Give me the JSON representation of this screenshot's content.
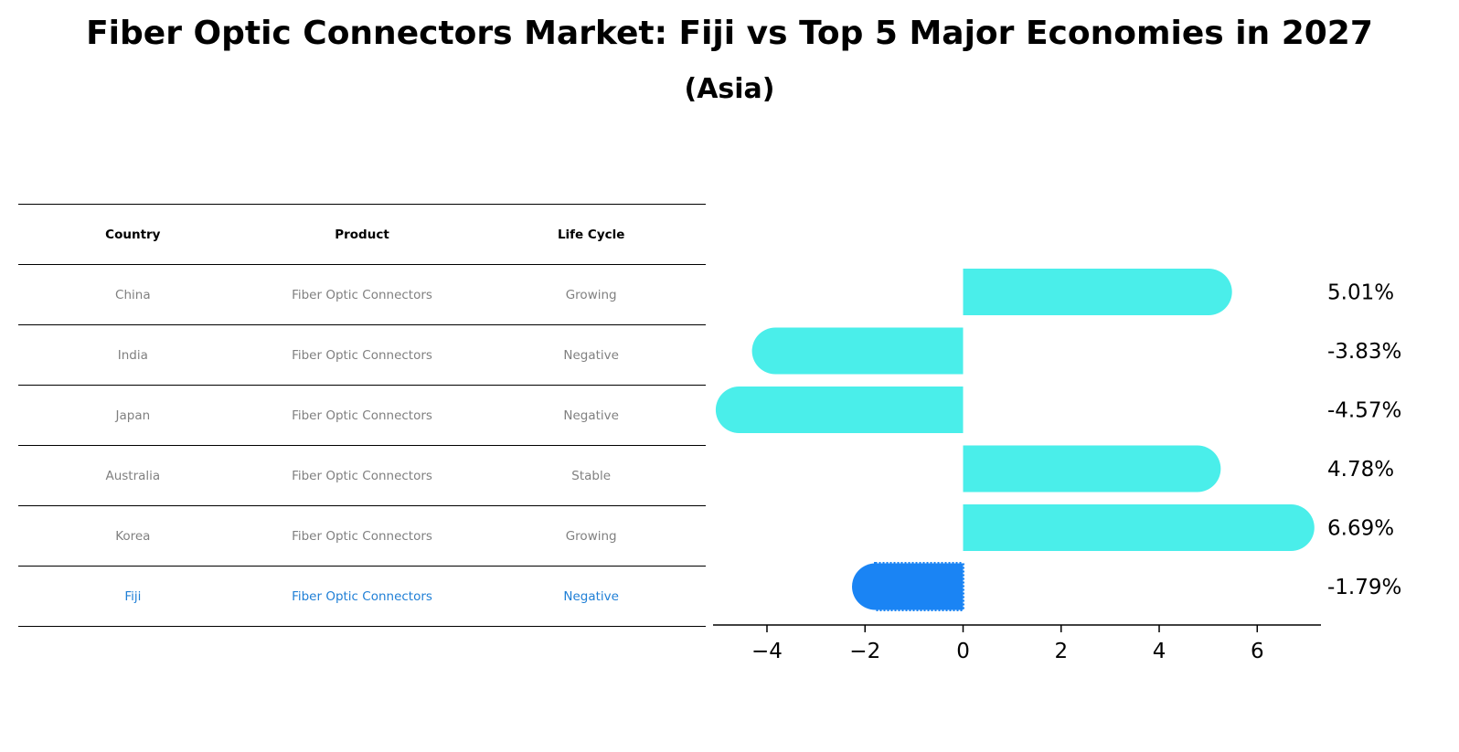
{
  "title": "Fiber Optic Connectors Market: Fiji vs Top 5 Major Economies in 2027",
  "subtitle": "(Asia)",
  "table": {
    "headers": [
      "Country",
      "Product",
      "Life Cycle"
    ],
    "rows": [
      [
        "China",
        "Fiber Optic Connectors",
        "Growing"
      ],
      [
        "India",
        "Fiber Optic Connectors",
        "Negative"
      ],
      [
        "Japan",
        "Fiber Optic Connectors",
        "Negative"
      ],
      [
        "Australia",
        "Fiber Optic Connectors",
        "Stable"
      ],
      [
        "Korea",
        "Fiber Optic Connectors",
        "Growing"
      ],
      [
        "Fiji",
        "Fiber Optic Connectors",
        "Negative"
      ]
    ],
    "highlight_row": 5
  },
  "colors": {
    "bar": "#4aeeea",
    "highlight": "#1a84f4",
    "highlight_text": "#1f7fd6",
    "text_muted": "#808080"
  },
  "chart_data": {
    "type": "bar",
    "orientation": "horizontal",
    "categories": [
      "China",
      "India",
      "Japan",
      "Australia",
      "Korea",
      "Fiji"
    ],
    "values": [
      5.01,
      -3.83,
      -4.57,
      4.78,
      6.69,
      -1.79
    ],
    "value_labels": [
      "5.01%",
      "-3.83%",
      "-4.57%",
      "4.78%",
      "6.69%",
      "-1.79%"
    ],
    "xlim": [
      -5.1,
      7.3
    ],
    "xticks": [
      -4,
      -2,
      0,
      2,
      4,
      6
    ],
    "xtick_labels": [
      "−4",
      "−2",
      "0",
      "2",
      "4",
      "6"
    ],
    "highlight_index": 5,
    "grid": false
  }
}
